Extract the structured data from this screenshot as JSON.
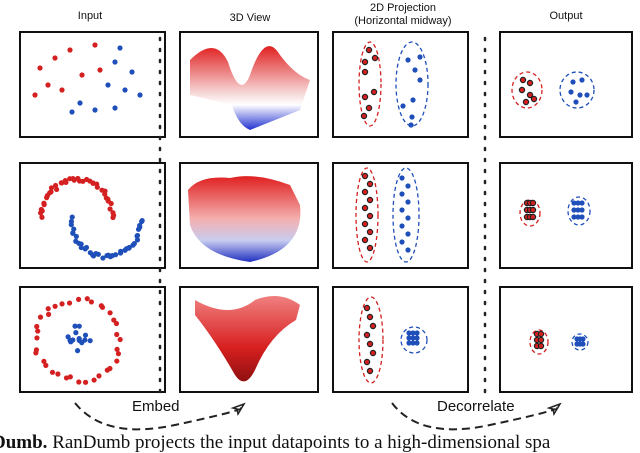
{
  "headers": {
    "input": "Input",
    "view3d": "3D View",
    "projection_line1": "2D Projection",
    "projection_line2": "(Horizontal midway)",
    "output": "Output"
  },
  "arrows": {
    "embed": "Embed",
    "decorrelate": "Decorrelate"
  },
  "caption": {
    "bold": "Dumb.",
    "text": " RanDumb projects the input datapoints to a high-dimensional spa"
  },
  "colors": {
    "class_a": "#d42020",
    "class_b": "#1f4fb8"
  },
  "rows": [
    "random-blobs",
    "two-moons",
    "concentric-circles"
  ]
}
